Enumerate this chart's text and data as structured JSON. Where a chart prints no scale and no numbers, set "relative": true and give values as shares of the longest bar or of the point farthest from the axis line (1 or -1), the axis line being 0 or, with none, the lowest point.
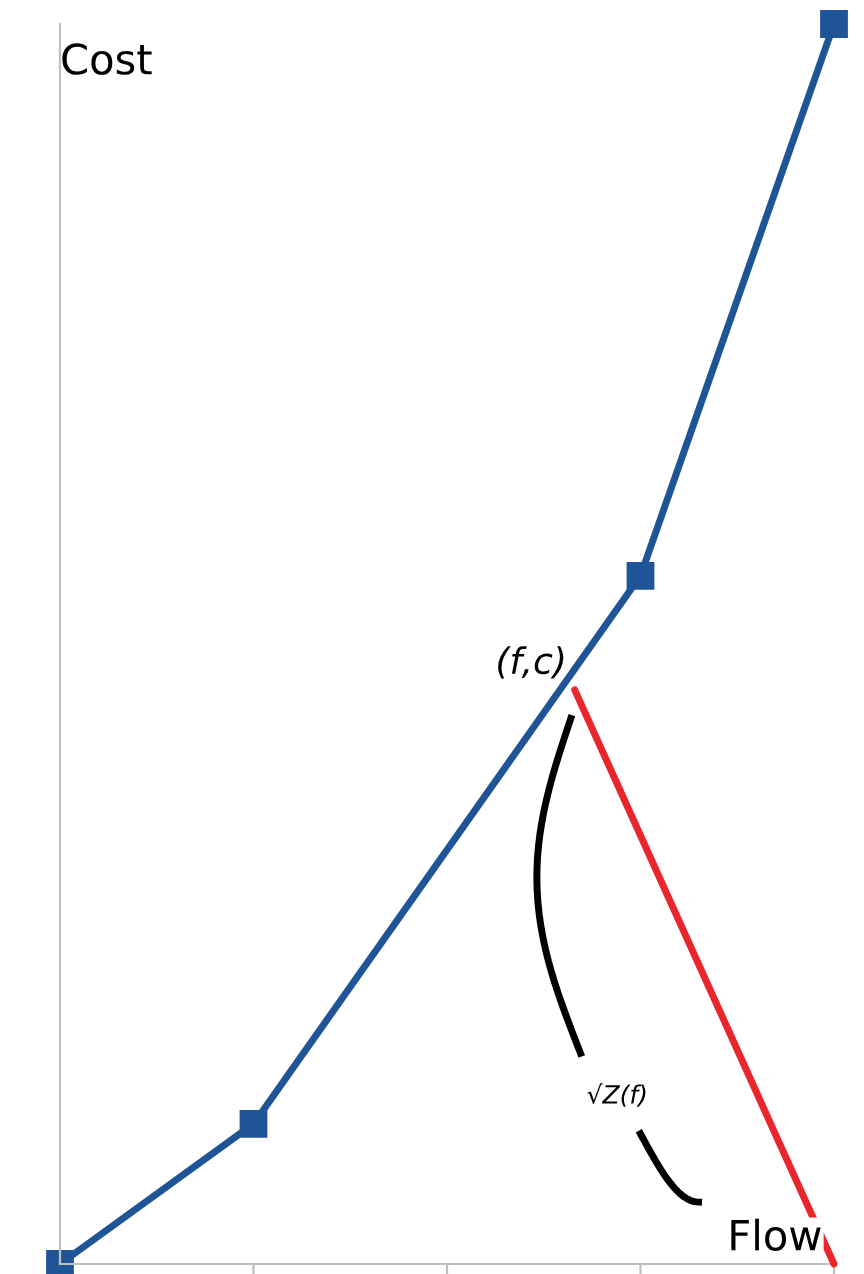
{
  "chart_data": {
    "type": "line",
    "relative": true,
    "xlabel": "Flow",
    "ylabel": "Cost",
    "categories": [
      null,
      null,
      null,
      null,
      null
    ],
    "series": [
      {
        "color": "#1f5597",
        "values": [
          0.0,
          0.113,
          null,
          0.555,
          1.0
        ],
        "marker": "square"
      }
    ],
    "annotations": [
      "(f,c)",
      "√Z(f)"
    ],
    "grid": false,
    "line_style": "solid"
  }
}
